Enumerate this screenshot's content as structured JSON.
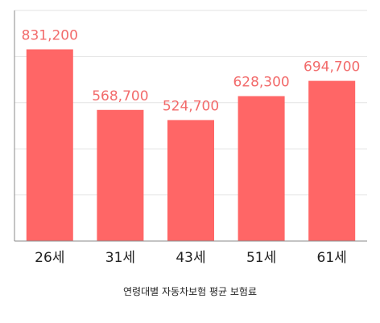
{
  "chart_data": {
    "type": "bar",
    "categories": [
      "26세",
      "31세",
      "43세",
      "51세",
      "61세"
    ],
    "values": [
      831200,
      568700,
      524700,
      628300,
      694700
    ],
    "value_labels": [
      "831,200",
      "568,700",
      "524,700",
      "628,300",
      "694,700"
    ],
    "title": "",
    "xlabel": "연령대별 자동차보험 평균 보험료",
    "ylabel": "",
    "ylim": [
      0,
      1000000
    ],
    "grid": true,
    "legend": "none",
    "colors": {
      "bar": "#ff6666",
      "data_label": "#f26b6b",
      "grid": "#e3e3e3",
      "axis": "#8a8a8a",
      "text": "#222222"
    }
  }
}
